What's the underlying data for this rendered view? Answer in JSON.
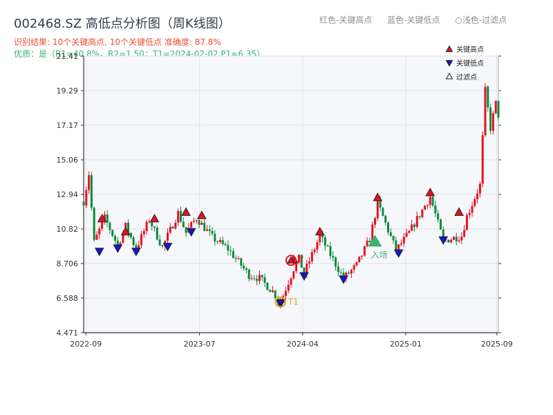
{
  "header": {
    "title": "002468.SZ 高低点分析图（周K线图）",
    "info_line1": "识别结果: 10个关键高点, 10个关键低点   准确度: 87.8%",
    "info_line2": "优质：是（R1=40.8%，R2=1.50；T1=2024-02-02 P1=6.35）",
    "legend_top": [
      "红色-关键高点",
      "蓝色-关键低点",
      "○浅色-过滤点"
    ]
  },
  "colors": {
    "up": "#e8101e",
    "down": "#0a8a3c",
    "high_marker": "#e8101e",
    "low_marker": "#1414d4",
    "plot_bg": "#f6f7fa",
    "grid": "#e1e3e8",
    "entry": "#3cb371",
    "t1": "#f0a020"
  },
  "chart_data": {
    "type": "candlestick",
    "title": "002468.SZ 高低点分析图（周K线图）",
    "ylim": [
      4.471,
      21.41
    ],
    "y_ticks": [
      "4.471",
      "6.588",
      "8.706",
      "10.82",
      "12.94",
      "15.06",
      "17.17",
      "19.29",
      "21.41"
    ],
    "x_ticks": [
      "2022-09",
      "2023-07",
      "2024-04",
      "2025-01",
      "2025-09"
    ],
    "x_range": [
      "2022-08-26",
      "2025-09-05"
    ],
    "grid": true,
    "legend_placement": "top-right",
    "legend": [
      "关键高点",
      "关键低点",
      "过滤点"
    ],
    "price_path": [
      [
        "2022-08-26",
        12.5
      ],
      [
        "2022-09-09",
        14.2
      ],
      [
        "2022-09-23",
        10.0
      ],
      [
        "2022-10-21",
        11.5
      ],
      [
        "2022-11-25",
        9.8
      ],
      [
        "2022-12-16",
        11.0
      ],
      [
        "2023-01-13",
        9.6
      ],
      [
        "2023-02-17",
        11.4
      ],
      [
        "2023-03-24",
        9.7
      ],
      [
        "2023-05-05",
        11.8
      ],
      [
        "2023-05-26",
        10.6
      ],
      [
        "2023-06-23",
        11.5
      ],
      [
        "2023-08-04",
        10.3
      ],
      [
        "2023-09-15",
        9.6
      ],
      [
        "2023-11-10",
        8.0
      ],
      [
        "2023-12-08",
        7.8
      ],
      [
        "2024-01-12",
        7.0
      ],
      [
        "2024-02-02",
        6.35
      ],
      [
        "2024-03-08",
        8.4
      ],
      [
        "2024-03-22",
        9.0
      ],
      [
        "2024-04-05",
        8.1
      ],
      [
        "2024-05-17",
        10.4
      ],
      [
        "2024-07-19",
        7.8
      ],
      [
        "2024-08-23",
        8.6
      ],
      [
        "2024-09-27",
        10.2
      ],
      [
        "2024-10-18",
        12.4
      ],
      [
        "2024-12-06",
        9.5
      ],
      [
        "2025-01-10",
        10.6
      ],
      [
        "2025-03-07",
        12.8
      ],
      [
        "2025-04-11",
        10.1
      ],
      [
        "2025-05-30",
        10.4
      ],
      [
        "2025-06-13",
        11.6
      ],
      [
        "2025-07-18",
        13.5
      ],
      [
        "2025-08-01",
        19.3
      ],
      [
        "2025-08-15",
        17.0
      ],
      [
        "2025-08-29",
        18.5
      ],
      [
        "2025-09-05",
        17.8
      ]
    ],
    "key_highs": [
      {
        "date": "2022-10-14",
        "price": 11.2
      },
      {
        "date": "2022-12-16",
        "price": 10.4
      },
      {
        "date": "2023-03-03",
        "price": 11.2
      },
      {
        "date": "2023-05-26",
        "price": 11.6
      },
      {
        "date": "2023-07-07",
        "price": 11.4
      },
      {
        "date": "2024-03-08",
        "price": 8.7
      },
      {
        "date": "2024-05-17",
        "price": 10.4
      },
      {
        "date": "2024-10-18",
        "price": 12.5
      },
      {
        "date": "2025-03-07",
        "price": 12.8
      },
      {
        "date": "2025-05-23",
        "price": 11.6
      }
    ],
    "key_lows": [
      {
        "date": "2022-10-07",
        "price": 9.7
      },
      {
        "date": "2022-11-25",
        "price": 9.9
      },
      {
        "date": "2023-01-13",
        "price": 9.7
      },
      {
        "date": "2023-04-07",
        "price": 10.0
      },
      {
        "date": "2023-06-09",
        "price": 10.9
      },
      {
        "date": "2024-02-02",
        "price": 6.5
      },
      {
        "date": "2024-04-05",
        "price": 8.2
      },
      {
        "date": "2024-07-19",
        "price": 8.0
      },
      {
        "date": "2024-12-13",
        "price": 9.6
      },
      {
        "date": "2025-04-11",
        "price": 10.4
      }
    ],
    "t1_point": {
      "label": "T1",
      "date": "2024-02-02",
      "price": 6.35
    },
    "filtered_high": {
      "label": "T",
      "date": "2024-03-01",
      "price": 8.9
    },
    "entry_point": {
      "label": "入场",
      "date": "2024-10-11",
      "price": 10.0
    }
  }
}
